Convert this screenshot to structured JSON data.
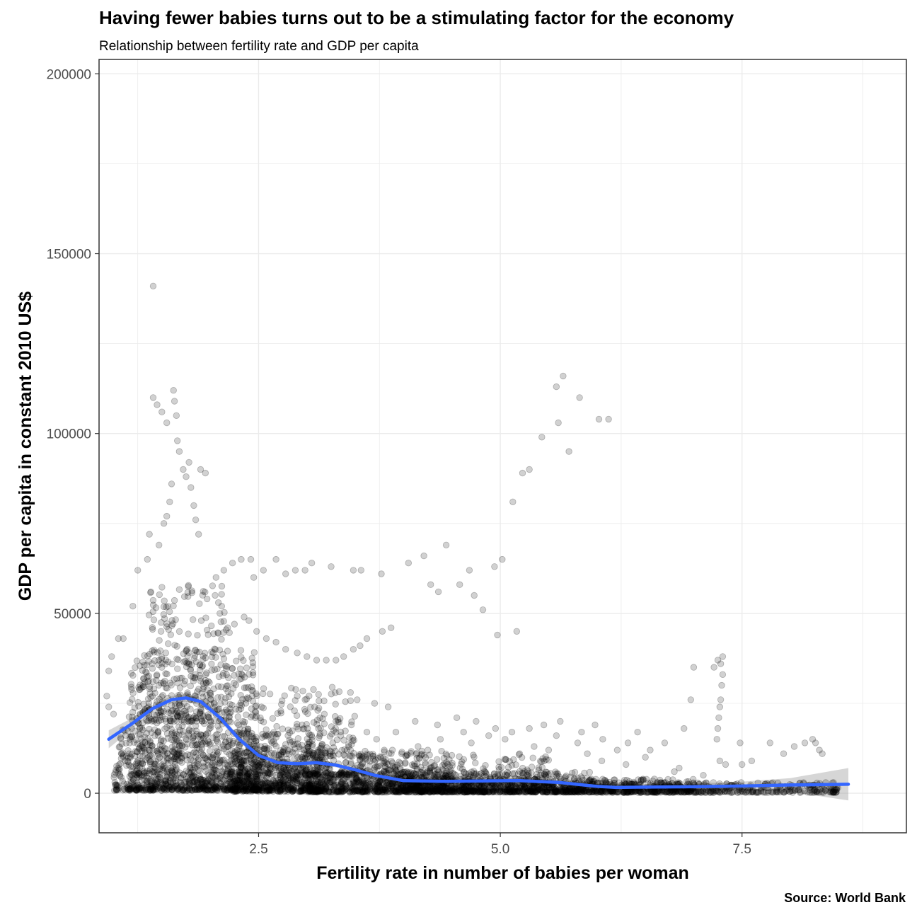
{
  "title": "Having fewer babies turns out to be a stimulating factor for the economy",
  "subtitle": "Relationship between fertility rate and GDP per capita",
  "caption": "Source: World Bank",
  "chart_data": {
    "type": "scatter",
    "xlabel": "Fertility rate in number of babies per woman",
    "ylabel": "GDP per capita in constant 2010 US$",
    "xlim": [
      0.85,
      9.2
    ],
    "ylim": [
      -11000,
      204000
    ],
    "x_ticks": [
      2.5,
      5.0,
      7.5
    ],
    "x_tick_labels": [
      "2.5",
      "5.0",
      "7.5"
    ],
    "y_ticks": [
      0,
      50000,
      100000,
      150000,
      200000
    ],
    "y_tick_labels": [
      "0",
      "50000",
      "100000",
      "150000",
      "200000"
    ],
    "grid": true,
    "point_color": "#000000",
    "point_alpha": 0.18,
    "smooth_color": "#3366FF",
    "band_color": "#999999",
    "series": [
      {
        "type": "points",
        "points": [
          [
            1.41,
            141000
          ],
          [
            1.41,
            110000
          ],
          [
            1.45,
            108000
          ],
          [
            1.5,
            106000
          ],
          [
            1.55,
            103000
          ],
          [
            1.62,
            112000
          ],
          [
            1.63,
            109000
          ],
          [
            1.65,
            105000
          ],
          [
            1.66,
            98000
          ],
          [
            1.68,
            95000
          ],
          [
            1.72,
            90000
          ],
          [
            1.75,
            88000
          ],
          [
            1.78,
            92000
          ],
          [
            1.8,
            85000
          ],
          [
            1.83,
            80000
          ],
          [
            1.85,
            76000
          ],
          [
            1.88,
            72000
          ],
          [
            1.9,
            90000
          ],
          [
            1.95,
            89000
          ],
          [
            1.52,
            75000
          ],
          [
            1.55,
            77000
          ],
          [
            1.58,
            81000
          ],
          [
            1.6,
            86000
          ],
          [
            1.47,
            69000
          ],
          [
            1.37,
            72000
          ],
          [
            1.35,
            65000
          ],
          [
            1.25,
            62000
          ],
          [
            1.2,
            52000
          ],
          [
            1.1,
            43000
          ],
          [
            1.05,
            43000
          ],
          [
            0.98,
            38000
          ],
          [
            0.95,
            34000
          ],
          [
            0.93,
            27000
          ],
          [
            0.95,
            24000
          ],
          [
            1.0,
            22000
          ],
          [
            5.65,
            116000
          ],
          [
            5.58,
            113000
          ],
          [
            5.82,
            110000
          ],
          [
            5.6,
            103000
          ],
          [
            6.02,
            104000
          ],
          [
            6.12,
            104000
          ],
          [
            5.43,
            99000
          ],
          [
            5.3,
            90000
          ],
          [
            5.23,
            89000
          ],
          [
            5.71,
            95000
          ],
          [
            5.13,
            81000
          ],
          [
            5.02,
            65000
          ],
          [
            4.94,
            63000
          ],
          [
            4.44,
            69000
          ],
          [
            4.68,
            62000
          ],
          [
            4.58,
            58000
          ],
          [
            4.36,
            56000
          ],
          [
            4.21,
            66000
          ],
          [
            4.05,
            64000
          ],
          [
            4.82,
            51000
          ],
          [
            5.17,
            45000
          ],
          [
            4.97,
            44000
          ],
          [
            4.73,
            55000
          ],
          [
            4.28,
            58000
          ],
          [
            3.77,
            61000
          ],
          [
            3.56,
            62000
          ],
          [
            3.48,
            62000
          ],
          [
            3.25,
            63000
          ],
          [
            3.05,
            64000
          ],
          [
            2.98,
            62000
          ],
          [
            2.88,
            62000
          ],
          [
            2.78,
            61000
          ],
          [
            2.68,
            65000
          ],
          [
            2.55,
            62000
          ],
          [
            2.45,
            60000
          ],
          [
            2.42,
            65000
          ],
          [
            2.32,
            65000
          ],
          [
            2.23,
            64000
          ],
          [
            2.14,
            62000
          ],
          [
            2.06,
            60000
          ],
          [
            3.87,
            46000
          ],
          [
            3.78,
            45000
          ],
          [
            3.62,
            43000
          ],
          [
            3.55,
            41000
          ],
          [
            3.48,
            40000
          ],
          [
            3.38,
            38000
          ],
          [
            3.3,
            37000
          ],
          [
            3.2,
            37000
          ],
          [
            3.1,
            37000
          ],
          [
            3.0,
            38000
          ],
          [
            2.9,
            39000
          ],
          [
            2.78,
            40000
          ],
          [
            2.68,
            42000
          ],
          [
            2.58,
            43000
          ],
          [
            2.48,
            45000
          ],
          [
            7.3,
            38000
          ],
          [
            7.28,
            36000
          ],
          [
            7.21,
            35000
          ],
          [
            7.25,
            37000
          ],
          [
            7.3,
            33000
          ],
          [
            7.29,
            30000
          ],
          [
            7.28,
            26000
          ],
          [
            7.27,
            24000
          ],
          [
            7.26,
            21000
          ],
          [
            7.25,
            18000
          ],
          [
            7.24,
            15000
          ],
          [
            7.27,
            9000
          ],
          [
            7.33,
            8000
          ],
          [
            7.48,
            14000
          ],
          [
            6.97,
            26000
          ],
          [
            7.0,
            35000
          ],
          [
            8.23,
            15000
          ],
          [
            8.26,
            14000
          ],
          [
            8.3,
            12000
          ],
          [
            8.15,
            14000
          ],
          [
            8.04,
            13000
          ],
          [
            7.93,
            11000
          ],
          [
            7.79,
            14000
          ],
          [
            7.6,
            9000
          ],
          [
            7.5,
            8000
          ],
          [
            8.33,
            11000
          ],
          [
            6.55,
            12000
          ],
          [
            6.32,
            14000
          ],
          [
            6.06,
            15000
          ],
          [
            5.84,
            17000
          ],
          [
            5.62,
            20000
          ],
          [
            5.45,
            19000
          ],
          [
            5.3,
            18000
          ],
          [
            5.12,
            17000
          ],
          [
            4.88,
            16000
          ],
          [
            4.62,
            17000
          ],
          [
            4.38,
            15000
          ],
          [
            4.15,
            13000
          ],
          [
            3.98,
            11000
          ],
          [
            3.8,
            12000
          ],
          [
            3.62,
            17000
          ],
          [
            3.46,
            19000
          ],
          [
            3.3,
            20000
          ],
          [
            3.18,
            22000
          ],
          [
            3.08,
            24000
          ],
          [
            2.98,
            26000
          ],
          [
            2.9,
            27000
          ],
          [
            3.7,
            25000
          ],
          [
            3.84,
            24000
          ],
          [
            3.52,
            26000
          ],
          [
            3.45,
            28000
          ],
          [
            2.4,
            48000
          ],
          [
            2.35,
            49000
          ],
          [
            2.25,
            47000
          ],
          [
            2.18,
            46000
          ],
          [
            2.1,
            50000
          ],
          [
            5.5,
            12000
          ],
          [
            5.8,
            14000
          ],
          [
            6.21,
            12000
          ],
          [
            6.5,
            10000
          ],
          [
            6.85,
            7000
          ],
          [
            7.1,
            5000
          ],
          [
            4.95,
            18000
          ],
          [
            4.75,
            20000
          ],
          [
            4.55,
            21000
          ],
          [
            4.35,
            19000
          ],
          [
            4.12,
            20000
          ],
          [
            3.92,
            17000
          ],
          [
            5.2,
            11000
          ],
          [
            5.9,
            11000
          ],
          [
            6.3,
            8000
          ],
          [
            6.8,
            6000
          ],
          [
            6.05,
            9000
          ],
          [
            5.35,
            13000
          ],
          [
            4.7,
            14000
          ],
          [
            4.25,
            12000
          ],
          [
            3.72,
            15000
          ],
          [
            3.35,
            16000
          ],
          [
            3.12,
            18000
          ],
          [
            2.95,
            19000
          ],
          [
            6.42,
            17000
          ],
          [
            6.7,
            14000
          ],
          [
            6.9,
            18000
          ],
          [
            5.98,
            19000
          ],
          [
            5.58,
            16000
          ],
          [
            5.05,
            15000
          ]
        ]
      },
      {
        "type": "cloud",
        "note_free_density": true,
        "regions": [
          {
            "x": [
              1.0,
              3.2
            ],
            "y": [
              800,
              18000
            ],
            "n": 900
          },
          {
            "x": [
              1.15,
              2.5
            ],
            "y": [
              1000,
              40000
            ],
            "n": 700
          },
          {
            "x": [
              1.3,
              2.2
            ],
            "y": [
              20000,
              58000
            ],
            "n": 260
          },
          {
            "x": [
              2.2,
              4.5
            ],
            "y": [
              500,
              12000
            ],
            "n": 700
          },
          {
            "x": [
              3.0,
              6.0
            ],
            "y": [
              300,
              6000
            ],
            "n": 800
          },
          {
            "x": [
              4.0,
              7.0
            ],
            "y": [
              300,
              4000
            ],
            "n": 650
          },
          {
            "x": [
              6.0,
              8.5
            ],
            "y": [
              200,
              3000
            ],
            "n": 420
          },
          {
            "x": [
              2.3,
              3.5
            ],
            "y": [
              5000,
              30000
            ],
            "n": 260
          },
          {
            "x": [
              3.5,
              5.5
            ],
            "y": [
              2000,
              12000
            ],
            "n": 260
          }
        ]
      }
    ],
    "smooth": {
      "x": [
        0.95,
        1.2,
        1.4,
        1.6,
        1.75,
        1.9,
        2.1,
        2.3,
        2.5,
        2.7,
        2.9,
        3.1,
        3.3,
        3.5,
        3.7,
        4.0,
        4.4,
        4.8,
        5.2,
        5.6,
        6.0,
        6.2,
        6.5,
        7.0,
        7.5,
        8.0,
        8.6
      ],
      "y": [
        15000,
        19500,
        23500,
        26000,
        26500,
        25500,
        21000,
        15000,
        10500,
        8500,
        8200,
        8500,
        7800,
        6500,
        5000,
        3500,
        3300,
        3400,
        3500,
        3000,
        1900,
        1600,
        1700,
        1800,
        2000,
        2300,
        2500
      ],
      "lo": [
        12500,
        18000,
        22500,
        25000,
        25500,
        24500,
        20000,
        14200,
        9800,
        7900,
        7600,
        7900,
        7200,
        6000,
        4500,
        3000,
        2800,
        2900,
        3000,
        2500,
        1300,
        1000,
        1000,
        900,
        800,
        400,
        -2000
      ],
      "hi": [
        17500,
        21000,
        24500,
        27000,
        27500,
        26500,
        22000,
        15800,
        11200,
        9100,
        8800,
        9100,
        8400,
        7000,
        5500,
        4000,
        3800,
        3900,
        4000,
        3500,
        2500,
        2200,
        2400,
        2700,
        3200,
        4200,
        7000
      ]
    }
  }
}
